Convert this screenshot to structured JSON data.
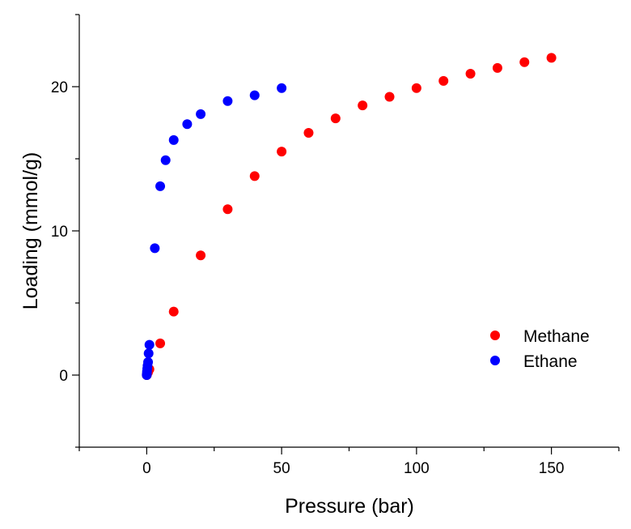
{
  "chart_data": {
    "type": "scatter",
    "title": "",
    "xlabel": "Pressure (bar)",
    "ylabel": "Loading (mmol/g)",
    "xlim": [
      -25,
      175
    ],
    "ylim": [
      -5,
      25
    ],
    "x_ticks": [
      0,
      50,
      100,
      150
    ],
    "x_minor_ticks": [
      -25,
      25,
      75,
      125,
      175
    ],
    "y_ticks": [
      0,
      10,
      20
    ],
    "y_minor_ticks": [
      -5,
      5,
      15,
      25
    ],
    "grid": false,
    "legend_position": "right",
    "series": [
      {
        "name": "Methane",
        "color": "#ff0000",
        "x": [
          0.01,
          0.05,
          0.1,
          0.5,
          1,
          5,
          10,
          20,
          30,
          40,
          50,
          60,
          70,
          80,
          90,
          100,
          110,
          120,
          130,
          140,
          150
        ],
        "y": [
          0.0,
          0.02,
          0.05,
          0.2,
          0.4,
          2.2,
          4.4,
          8.3,
          11.5,
          13.8,
          15.5,
          16.8,
          17.8,
          18.7,
          19.3,
          19.9,
          20.4,
          20.9,
          21.3,
          21.7,
          22.0
        ]
      },
      {
        "name": "Ethane",
        "color": "#0000ff",
        "x": [
          0.01,
          0.05,
          0.1,
          0.2,
          0.3,
          0.5,
          0.7,
          1,
          3,
          5,
          7,
          10,
          15,
          20,
          30,
          40,
          50
        ],
        "y": [
          0.0,
          0.1,
          0.25,
          0.45,
          0.65,
          0.9,
          1.5,
          2.1,
          8.8,
          13.1,
          14.9,
          16.3,
          17.4,
          18.1,
          19.0,
          19.4,
          19.9
        ]
      }
    ]
  }
}
